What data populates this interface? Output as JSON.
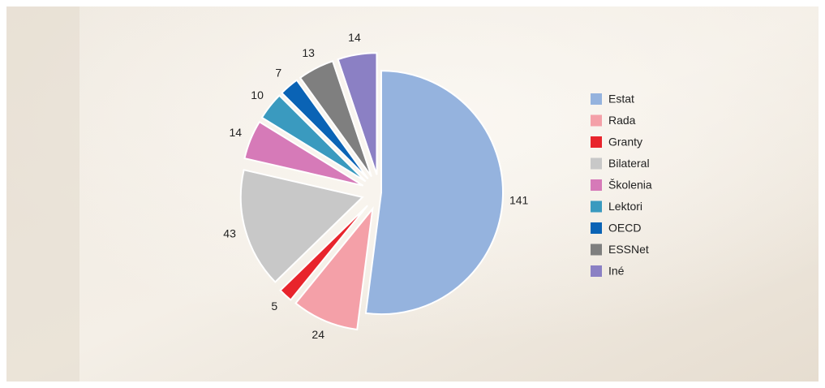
{
  "chart_data": {
    "type": "pie",
    "categories": [
      "Estat",
      "Rada",
      "Granty",
      "Bilateral",
      "Školenia",
      "Lektori",
      "OECD",
      "ESSNet",
      "Iné"
    ],
    "values": [
      141,
      24,
      5,
      43,
      14,
      10,
      7,
      13,
      14
    ],
    "colors": [
      "#95b3de",
      "#f4a0a8",
      "#e8242c",
      "#c8c8c8",
      "#d67ab8",
      "#3a9abf",
      "#0a63b5",
      "#7f7f7f",
      "#8b80c4"
    ],
    "legend": "right"
  }
}
